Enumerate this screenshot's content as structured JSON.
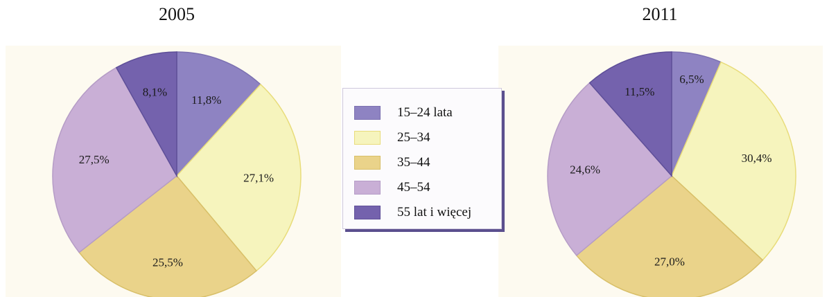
{
  "chart_data": [
    {
      "type": "pie",
      "title": "2005",
      "categories": [
        "15–24 lata",
        "25–34",
        "35–44",
        "45–54",
        "55 lat i więcej"
      ],
      "values": [
        11.8,
        27.1,
        25.5,
        27.5,
        8.1
      ],
      "labels": [
        "11,8%",
        "27,1%",
        "25,5%",
        "27,5%",
        "8,1%"
      ],
      "start_angle_deg": 0,
      "direction": "clockwise",
      "legend_position": "center"
    },
    {
      "type": "pie",
      "title": "2011",
      "categories": [
        "15–24 lata",
        "25–34",
        "35–44",
        "45–54",
        "55 lat i więcej"
      ],
      "values": [
        6.5,
        30.4,
        27.0,
        24.6,
        11.5
      ],
      "labels": [
        "6,5%",
        "30,4%",
        "27,0%",
        "24,6%",
        "11,5%"
      ],
      "start_angle_deg": 0,
      "direction": "clockwise",
      "legend_position": "center"
    }
  ],
  "legend": {
    "items": [
      {
        "label": "15–24 lata",
        "color": "#8e83c2",
        "border": "#7b70b0"
      },
      {
        "label": "25–34",
        "color": "#f6f4bd",
        "border": "#e8dc7a"
      },
      {
        "label": "35–44",
        "color": "#ead38a",
        "border": "#d8bf68"
      },
      {
        "label": "45–54",
        "color": "#c9afd6",
        "border": "#b59cc6"
      },
      {
        "label": "55 lat i więcej",
        "color": "#7462ad",
        "border": "#5e4f98"
      }
    ]
  },
  "colors": {
    "panel_background": "#fdfaf0",
    "legend_shadow": "#5b4f8e"
  }
}
